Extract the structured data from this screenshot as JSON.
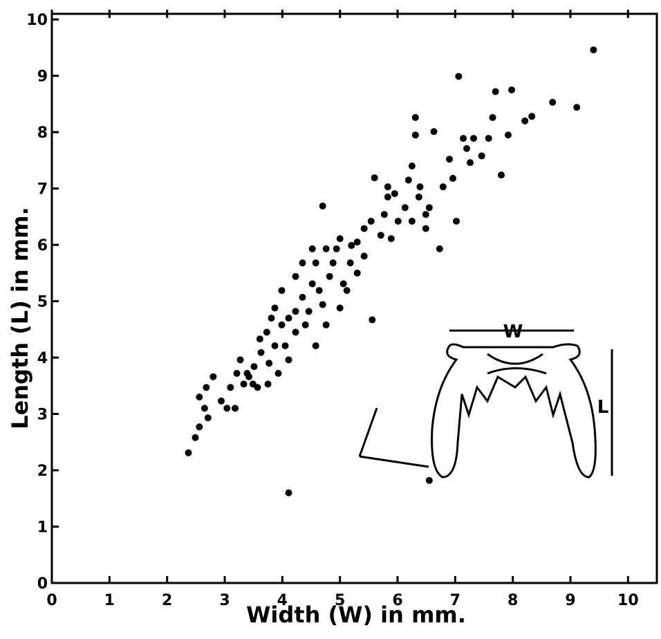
{
  "chart_data": {
    "type": "scatter",
    "x_label": "Width (W) in mm.",
    "y_label": "Length (L) in mm.",
    "annotations": [
      "W",
      "L"
    ],
    "color": "#000000",
    "xlim": [
      0,
      10.5
    ],
    "ylim": [
      0,
      10.1
    ],
    "xticks": [
      0,
      1,
      2,
      3,
      4,
      5,
      6,
      7,
      8,
      9,
      10
    ],
    "yticks": [
      0,
      1,
      2,
      3,
      4,
      5,
      6,
      7,
      8,
      9,
      10
    ],
    "x": [
      2.37,
      2.49,
      2.56,
      2.71,
      2.56,
      2.68,
      2.8,
      2.94,
      3.04,
      3.18,
      3.21,
      3.27,
      3.42,
      3.51,
      3.63,
      3.61,
      3.73,
      3.81,
      3.87,
      3.99,
      4.05,
      4.11,
      3.93,
      3.75,
      3.49,
      3.33,
      3.1,
      2.65,
      4.23,
      4.35,
      4.4,
      4.52,
      4.58,
      4.7,
      4.82,
      4.88,
      4.94,
      4.58,
      4.7,
      5.0,
      5.06,
      5.18,
      5.3,
      5.42,
      5.54,
      5.6,
      5.56,
      5.77,
      5.89,
      5.95,
      6.13,
      6.19,
      6.31,
      6.31,
      6.37,
      6.49,
      6.55,
      6.63,
      6.73,
      6.79,
      6.9,
      6.96,
      7.02,
      7.06,
      7.14,
      7.2,
      7.26,
      7.32,
      7.46,
      7.58,
      7.65,
      7.7,
      7.8,
      7.92,
      7.98,
      8.21,
      8.33,
      8.69,
      9.11,
      9.4,
      6.55,
      4.11,
      3.87,
      3.77,
      3.57,
      3.39,
      4.23,
      4.11,
      4.46,
      4.64,
      4.76,
      4.52,
      4.76,
      5.0,
      5.12,
      5.3,
      5.2,
      5.42,
      5.71,
      5.83,
      6.01,
      6.25,
      6.39,
      6.49,
      5.83,
      6.25,
      4.35,
      4.23,
      3.99
    ],
    "values": [
      2.31,
      2.58,
      2.77,
      2.93,
      3.3,
      3.47,
      3.66,
      3.23,
      3.1,
      3.1,
      3.72,
      3.96,
      3.66,
      3.84,
      4.09,
      4.33,
      4.45,
      4.7,
      4.88,
      4.58,
      4.21,
      3.96,
      3.72,
      3.53,
      3.53,
      3.53,
      3.47,
      3.1,
      4.82,
      5.07,
      4.58,
      5.31,
      5.68,
      4.94,
      5.44,
      5.68,
      5.93,
      4.21,
      6.69,
      4.88,
      5.31,
      5.68,
      6.05,
      6.29,
      6.42,
      7.19,
      4.67,
      6.54,
      6.11,
      6.91,
      6.66,
      7.15,
      8.26,
      7.95,
      6.85,
      6.29,
      6.66,
      8.01,
      5.93,
      7.03,
      7.52,
      7.18,
      6.42,
      8.99,
      7.89,
      7.71,
      7.46,
      7.89,
      7.58,
      7.89,
      8.26,
      8.72,
      7.24,
      7.95,
      8.75,
      8.2,
      8.28,
      8.53,
      8.44,
      9.46,
      1.82,
      1.6,
      4.21,
      3.9,
      3.47,
      3.72,
      4.45,
      4.7,
      4.82,
      5.19,
      4.58,
      5.93,
      5.93,
      6.11,
      5.19,
      5.5,
      5.99,
      5.8,
      6.17,
      6.85,
      6.42,
      6.42,
      7.03,
      6.54,
      7.03,
      7.4,
      5.68,
      5.44,
      5.19
    ]
  }
}
